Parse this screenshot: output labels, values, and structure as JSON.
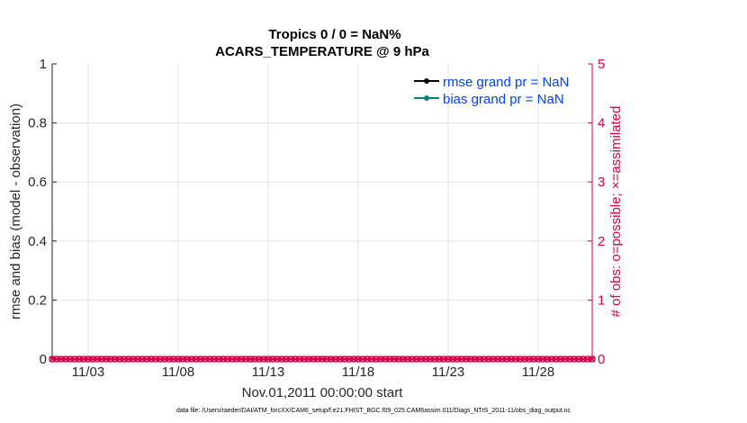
{
  "chart_data": {
    "type": "line",
    "title": [
      "Tropics 0 / 0 = NaN%",
      "ACARS_TEMPERATURE @ 9 hPa"
    ],
    "xlabel": "Nov.01,2011 00:00:00 start",
    "ylabel": "rmse and bias (model - observation)",
    "ylabel_right": "# of obs: o=possible; ×=assimilated",
    "x_ticks": [
      "11/03",
      "11/08",
      "11/13",
      "11/18",
      "11/23",
      "11/28"
    ],
    "x_tick_days": [
      2,
      7,
      12,
      17,
      22,
      27
    ],
    "xlim_days": [
      0,
      30
    ],
    "x_step_days": 0.25,
    "ylim": [
      0,
      1
    ],
    "y_ticks": [
      "0",
      "0.2",
      "0.4",
      "0.6",
      "0.8",
      "1"
    ],
    "ylim_right": [
      0,
      5
    ],
    "y_ticks_right": [
      "0",
      "1",
      "2",
      "3",
      "4",
      "5"
    ],
    "grid": true,
    "legend_position": "top-right",
    "series": [
      {
        "name": "rmse grand pr = NaN",
        "color": "#000000",
        "values": []
      },
      {
        "name": "bias grand pr = NaN",
        "color": "#008080",
        "values": []
      },
      {
        "name": "# of obs possible/assimilated",
        "color": "#d6004f",
        "constant_value": 0,
        "axis": "right"
      }
    ],
    "footnote": "data file: /Users/raeder/DAI/ATM_forcXX/CAM6_setup/f.e21.FHIST_BGC.f09_025.CAM6assim.011/Diags_NTrS_2011-11/obs_diag_output.nc"
  }
}
